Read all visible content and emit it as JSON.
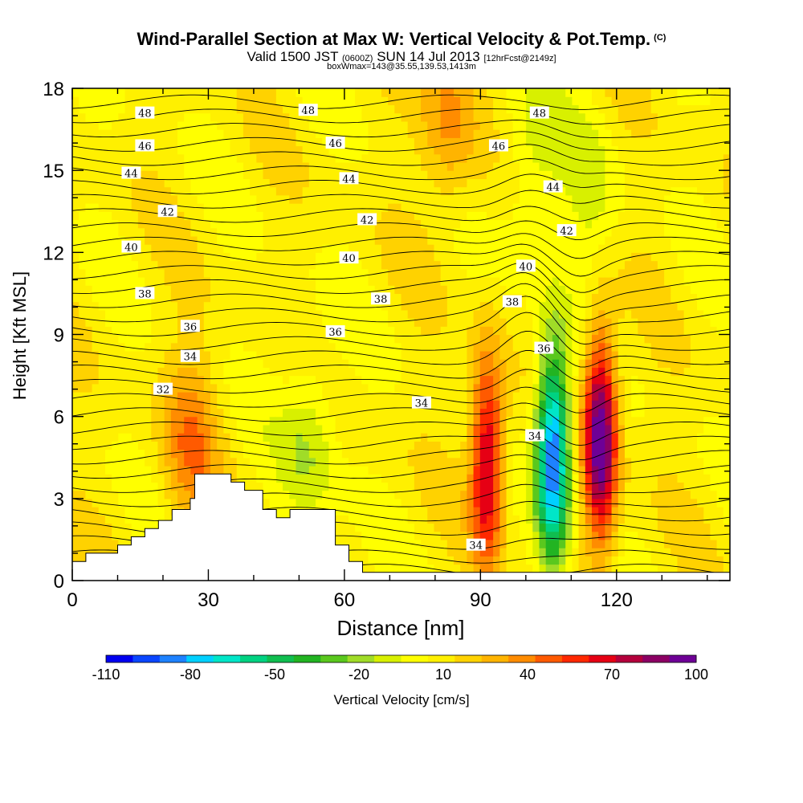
{
  "header": {
    "title": "Wind-Parallel Section at Max W: Vertical Velocity & Pot.Temp.",
    "title_mark": "(C)",
    "valid_prefix": "Valid 1500 JST ",
    "valid_utc": "(0600Z)",
    "valid_date": " SUN 14 Jul 2013 ",
    "valid_fcst": "[12hrFcst@2149z]",
    "subtitle2": "boxWmax=143@35.55,139.53,1413m"
  },
  "chart_data": {
    "type": "heatmap",
    "title": "Wind-Parallel Section at Max W: Vertical Velocity & Pot.Temp.",
    "xlabel": "Distance [nm]",
    "ylabel": "Height [Kft MSL]",
    "xlim": [
      0,
      145
    ],
    "ylim": [
      0,
      18
    ],
    "x_ticks": [
      0,
      30,
      60,
      90,
      120
    ],
    "y_ticks": [
      0,
      3,
      6,
      9,
      12,
      15,
      18
    ],
    "grid": false,
    "colorbar": {
      "label": "Vertical Velocity [cm/s]",
      "tick_labels": [
        "-110",
        "-80",
        "-50",
        "-20",
        "10",
        "40",
        "70",
        "100"
      ],
      "levels": [
        -110,
        -100,
        -90,
        -80,
        -70,
        -60,
        -50,
        -40,
        -30,
        -20,
        -10,
        0,
        10,
        20,
        30,
        40,
        50,
        60,
        70,
        80,
        90,
        100
      ],
      "colors": [
        "#0000f0",
        "#0a46ff",
        "#1e82ff",
        "#00d0ff",
        "#00e6c8",
        "#00d282",
        "#10be50",
        "#22b422",
        "#5ac81e",
        "#a0dc28",
        "#d8f000",
        "#ffff00",
        "#fff000",
        "#ffd200",
        "#ffb400",
        "#ff8c00",
        "#ff5a00",
        "#ff2800",
        "#e60014",
        "#b4003c",
        "#8c0064",
        "#6e0096"
      ]
    },
    "velocity_cores": [
      {
        "x": 91.5,
        "y": 4.4,
        "w": 75,
        "note": "updraft"
      },
      {
        "x": 106,
        "y": 4.6,
        "w": -110,
        "note": "downdraft"
      },
      {
        "x": 116.5,
        "y": 5.3,
        "w": 100,
        "note": "updraft"
      },
      {
        "x": 83,
        "y": 17,
        "w": 30,
        "note": "updraft"
      },
      {
        "x": 101,
        "y": 15,
        "w": -20,
        "note": "downdraft"
      },
      {
        "x": 114,
        "y": 14,
        "w": -15,
        "note": "downdraft"
      },
      {
        "x": 52,
        "y": 5,
        "w": -25,
        "note": "downdraft"
      },
      {
        "x": 26,
        "y": 5,
        "w": 30,
        "note": "updraft"
      }
    ],
    "theta_contours": [
      {
        "level": "32",
        "label_positions": [
          [
            20,
            7.0
          ]
        ]
      },
      {
        "level": "34",
        "label_positions": [
          [
            26,
            8.2
          ],
          [
            77,
            6.5
          ],
          [
            102,
            5.3
          ],
          [
            89,
            1.3
          ]
        ]
      },
      {
        "level": "36",
        "label_positions": [
          [
            26,
            9.3
          ],
          [
            58,
            9.1
          ],
          [
            104,
            8.5
          ]
        ]
      },
      {
        "level": "38",
        "label_positions": [
          [
            16,
            10.5
          ],
          [
            68,
            10.3
          ],
          [
            97,
            10.2
          ]
        ]
      },
      {
        "level": "40",
        "label_positions": [
          [
            13,
            12.2
          ],
          [
            61,
            11.8
          ],
          [
            100,
            11.5
          ]
        ]
      },
      {
        "level": "42",
        "label_positions": [
          [
            21,
            13.5
          ],
          [
            65,
            13.2
          ],
          [
            109,
            12.8
          ]
        ]
      },
      {
        "level": "44",
        "label_positions": [
          [
            13,
            14.9
          ],
          [
            61,
            14.7
          ],
          [
            106,
            14.4
          ]
        ]
      },
      {
        "level": "46",
        "label_positions": [
          [
            16,
            15.9
          ],
          [
            58,
            16.0
          ],
          [
            94,
            15.9
          ]
        ]
      },
      {
        "level": "48",
        "label_positions": [
          [
            16,
            17.1
          ],
          [
            52,
            17.2
          ],
          [
            103,
            17.1
          ]
        ]
      }
    ],
    "terrain": [
      [
        0,
        0.7
      ],
      [
        3,
        0.7
      ],
      [
        3,
        1.0
      ],
      [
        10,
        1.0
      ],
      [
        10,
        1.3
      ],
      [
        13,
        1.3
      ],
      [
        13,
        1.6
      ],
      [
        16,
        1.6
      ],
      [
        16,
        1.9
      ],
      [
        19,
        1.9
      ],
      [
        19,
        2.2
      ],
      [
        22,
        2.2
      ],
      [
        22,
        2.6
      ],
      [
        26,
        2.6
      ],
      [
        26,
        3.0
      ],
      [
        27,
        3.0
      ],
      [
        27,
        3.9
      ],
      [
        35,
        3.9
      ],
      [
        35,
        3.6
      ],
      [
        38,
        3.6
      ],
      [
        38,
        3.3
      ],
      [
        42,
        3.3
      ],
      [
        42,
        2.6
      ],
      [
        45,
        2.6
      ],
      [
        45,
        2.3
      ],
      [
        48,
        2.3
      ],
      [
        48,
        2.6
      ],
      [
        58,
        2.6
      ],
      [
        58,
        1.3
      ],
      [
        61,
        1.3
      ],
      [
        61,
        0.7
      ],
      [
        64,
        0.7
      ],
      [
        64,
        0.3
      ],
      [
        145,
        0.3
      ]
    ]
  }
}
